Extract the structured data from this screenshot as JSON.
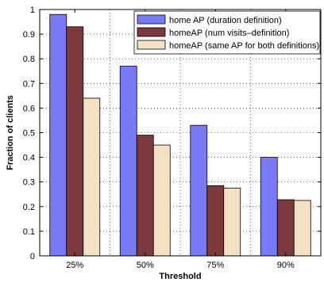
{
  "chart_data": {
    "type": "bar",
    "categories": [
      "25%",
      "50%",
      "75%",
      "90%"
    ],
    "series": [
      {
        "name": "home AP (duration definition)",
        "color": "#7a7af7",
        "values": [
          0.98,
          0.77,
          0.53,
          0.4
        ]
      },
      {
        "name": "homeAP (num visits–definition)",
        "color": "#7c3a3f",
        "values": [
          0.93,
          0.49,
          0.285,
          0.228
        ]
      },
      {
        "name": "homeAP (same AP for both definitions)",
        "color": "#f2e2c3",
        "values": [
          0.64,
          0.45,
          0.275,
          0.225
        ]
      }
    ],
    "xlabel": "Threshold",
    "ylabel": "Fraction of clients",
    "ylim": [
      0,
      1
    ],
    "yticks": [
      0,
      0.1,
      0.2,
      0.3,
      0.4,
      0.5,
      0.6,
      0.7,
      0.8,
      0.9,
      1
    ],
    "ytick_labels": [
      "0",
      "0.1",
      "0.2",
      "0.3",
      "0.4",
      "0.5",
      "0.6",
      "0.7",
      "0.8",
      "0.9",
      "1"
    ],
    "grid": true,
    "legend_position": "top-right"
  }
}
